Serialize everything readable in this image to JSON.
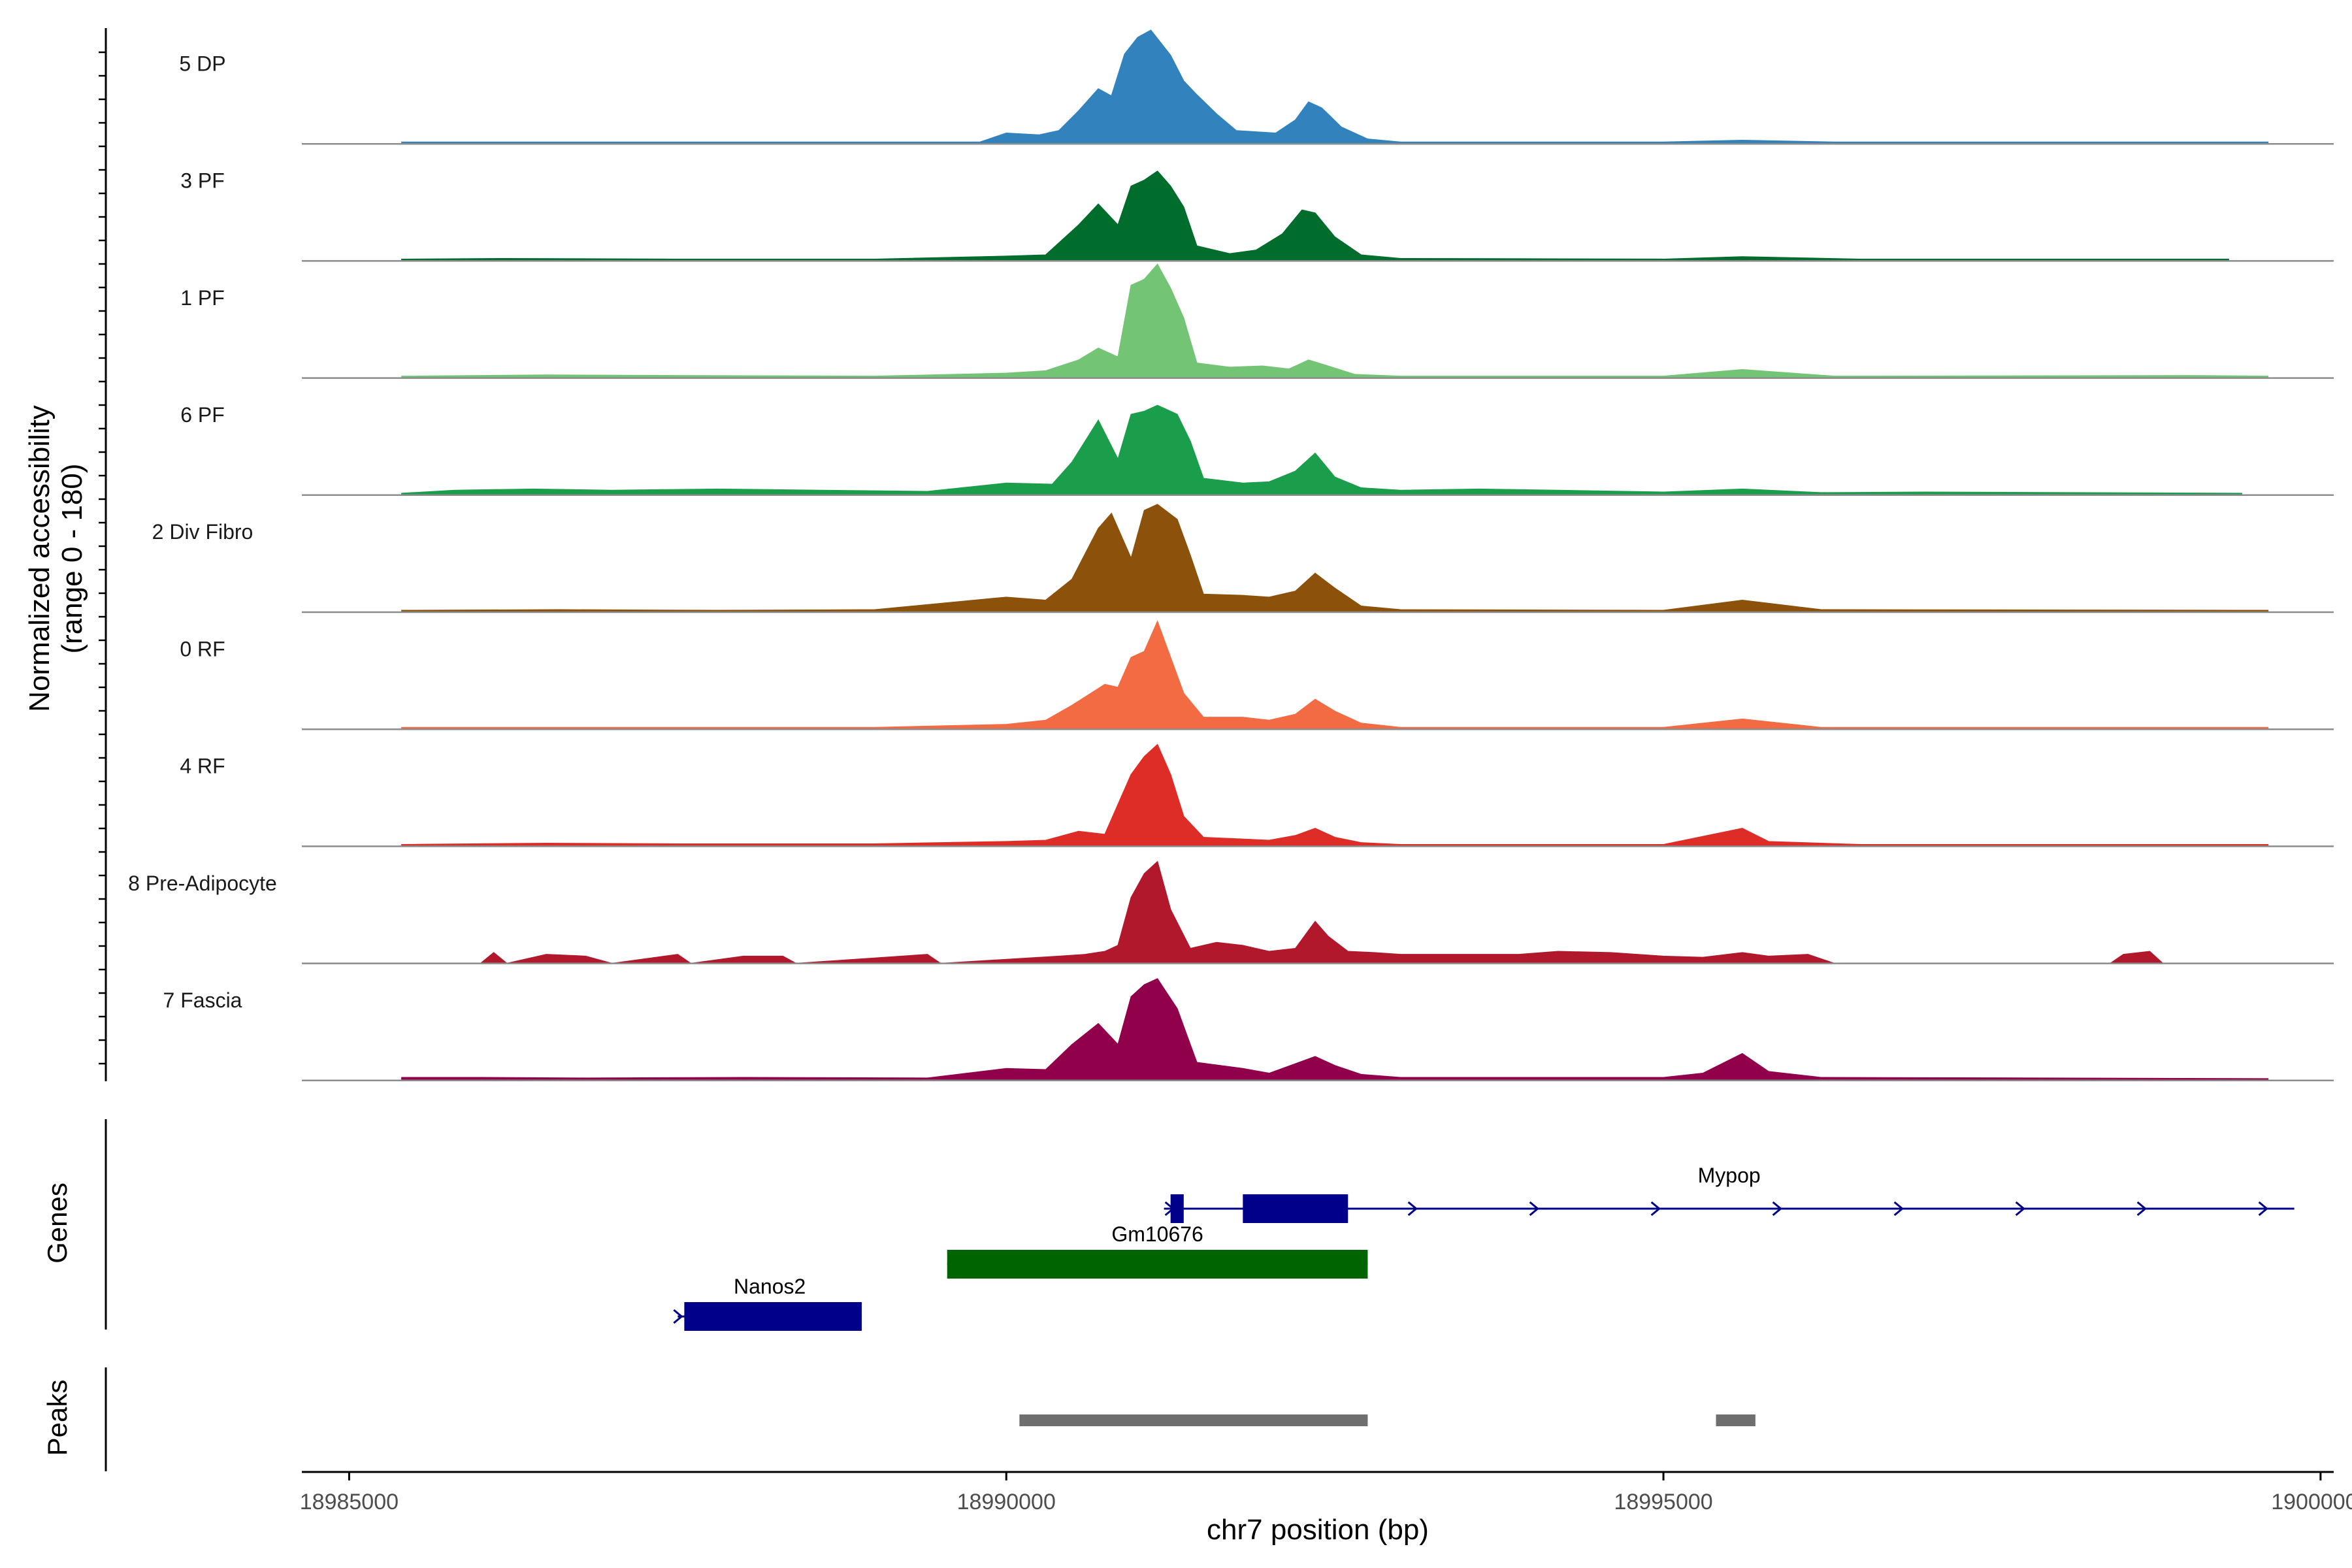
{
  "chart_data": {
    "type": "area",
    "title": "",
    "xlabel": "chr7 position (bp)",
    "ylabel": "Normalized accessibility",
    "ylabel_sub": "(range 0 - 180)",
    "ylim": [
      0,
      180
    ],
    "xlim": [
      18984640,
      19000100
    ],
    "x_ticks": [
      18985000,
      18990000,
      18995000,
      19000000
    ],
    "x_tick_labels": [
      "18985000",
      "18990000",
      "18995000",
      "19000000"
    ],
    "tracks": [
      {
        "name": "5 DP",
        "color": "#3182bd",
        "points": [
          [
            18985400,
            3
          ],
          [
            18986800,
            3
          ],
          [
            18988000,
            3
          ],
          [
            18989800,
            3
          ],
          [
            18990000,
            18
          ],
          [
            18990250,
            15
          ],
          [
            18990400,
            22
          ],
          [
            18990550,
            55
          ],
          [
            18990700,
            92
          ],
          [
            18990800,
            80
          ],
          [
            18990900,
            150
          ],
          [
            18991000,
            178
          ],
          [
            18991100,
            190
          ],
          [
            18991250,
            148
          ],
          [
            18991350,
            105
          ],
          [
            18991450,
            82
          ],
          [
            18991600,
            50
          ],
          [
            18991750,
            22
          ],
          [
            18991900,
            20
          ],
          [
            18992050,
            18
          ],
          [
            18992200,
            40
          ],
          [
            18992300,
            70
          ],
          [
            18992400,
            60
          ],
          [
            18992550,
            28
          ],
          [
            18992750,
            8
          ],
          [
            18993000,
            3
          ],
          [
            18994500,
            3
          ],
          [
            18995000,
            3
          ],
          [
            18995600,
            6
          ],
          [
            18996300,
            3
          ],
          [
            18998000,
            3
          ],
          [
            18999600,
            3
          ]
        ]
      },
      {
        "name": "3 PF",
        "color": "#006d2c",
        "points": [
          [
            18985400,
            3
          ],
          [
            18986200,
            4
          ],
          [
            18987500,
            3
          ],
          [
            18989000,
            3
          ],
          [
            18990000,
            8
          ],
          [
            18990300,
            10
          ],
          [
            18990550,
            60
          ],
          [
            18990700,
            95
          ],
          [
            18990850,
            60
          ],
          [
            18990950,
            125
          ],
          [
            18991050,
            135
          ],
          [
            18991150,
            150
          ],
          [
            18991250,
            125
          ],
          [
            18991350,
            90
          ],
          [
            18991450,
            25
          ],
          [
            18991700,
            12
          ],
          [
            18991900,
            18
          ],
          [
            18992100,
            45
          ],
          [
            18992250,
            85
          ],
          [
            18992350,
            80
          ],
          [
            18992500,
            40
          ],
          [
            18992700,
            10
          ],
          [
            18993000,
            4
          ],
          [
            18995000,
            3
          ],
          [
            18995600,
            7
          ],
          [
            18996500,
            3
          ],
          [
            18999300,
            3
          ]
        ]
      },
      {
        "name": "1 PF",
        "color": "#74c476",
        "points": [
          [
            18985400,
            3
          ],
          [
            18986500,
            5
          ],
          [
            18987500,
            4
          ],
          [
            18989000,
            3
          ],
          [
            18990000,
            8
          ],
          [
            18990300,
            12
          ],
          [
            18990550,
            30
          ],
          [
            18990700,
            50
          ],
          [
            18990850,
            35
          ],
          [
            18990950,
            155
          ],
          [
            18991050,
            165
          ],
          [
            18991150,
            190
          ],
          [
            18991250,
            150
          ],
          [
            18991350,
            100
          ],
          [
            18991450,
            25
          ],
          [
            18991700,
            18
          ],
          [
            18991950,
            20
          ],
          [
            18992150,
            15
          ],
          [
            18992300,
            30
          ],
          [
            18992450,
            20
          ],
          [
            18992650,
            6
          ],
          [
            18993000,
            3
          ],
          [
            18995000,
            3
          ],
          [
            18995600,
            14
          ],
          [
            18996300,
            3
          ],
          [
            18999000,
            4
          ],
          [
            18999600,
            3
          ]
        ]
      },
      {
        "name": "6 PF",
        "color": "#1b9e4b",
        "points": [
          [
            18985400,
            3
          ],
          [
            18985800,
            8
          ],
          [
            18986400,
            10
          ],
          [
            18987000,
            8
          ],
          [
            18987800,
            10
          ],
          [
            18988600,
            8
          ],
          [
            18989400,
            6
          ],
          [
            18990000,
            20
          ],
          [
            18990350,
            18
          ],
          [
            18990500,
            55
          ],
          [
            18990700,
            125
          ],
          [
            18990850,
            60
          ],
          [
            18990950,
            135
          ],
          [
            18991050,
            140
          ],
          [
            18991150,
            150
          ],
          [
            18991300,
            135
          ],
          [
            18991400,
            90
          ],
          [
            18991500,
            28
          ],
          [
            18991800,
            20
          ],
          [
            18992000,
            22
          ],
          [
            18992200,
            40
          ],
          [
            18992350,
            70
          ],
          [
            18992500,
            30
          ],
          [
            18992700,
            12
          ],
          [
            18993000,
            8
          ],
          [
            18993600,
            10
          ],
          [
            18994200,
            8
          ],
          [
            18995000,
            5
          ],
          [
            18995600,
            10
          ],
          [
            18996200,
            4
          ],
          [
            18997000,
            5
          ],
          [
            18999400,
            3
          ]
        ]
      },
      {
        "name": "2 Div Fibro",
        "color": "#8c510a",
        "points": [
          [
            18985400,
            3
          ],
          [
            18986600,
            4
          ],
          [
            18987800,
            3
          ],
          [
            18989000,
            4
          ],
          [
            18990000,
            25
          ],
          [
            18990300,
            20
          ],
          [
            18990500,
            55
          ],
          [
            18990700,
            140
          ],
          [
            18990800,
            165
          ],
          [
            18990950,
            90
          ],
          [
            18991050,
            170
          ],
          [
            18991150,
            180
          ],
          [
            18991300,
            155
          ],
          [
            18991400,
            95
          ],
          [
            18991500,
            30
          ],
          [
            18991800,
            28
          ],
          [
            18992000,
            25
          ],
          [
            18992200,
            35
          ],
          [
            18992350,
            65
          ],
          [
            18992500,
            40
          ],
          [
            18992700,
            10
          ],
          [
            18993000,
            4
          ],
          [
            18995000,
            3
          ],
          [
            18995600,
            20
          ],
          [
            18996200,
            4
          ],
          [
            18999600,
            3
          ]
        ]
      },
      {
        "name": "0 RF",
        "color": "#f26b43",
        "points": [
          [
            18985400,
            3
          ],
          [
            18987000,
            3
          ],
          [
            18989000,
            3
          ],
          [
            18990000,
            8
          ],
          [
            18990300,
            15
          ],
          [
            18990500,
            40
          ],
          [
            18990750,
            75
          ],
          [
            18990850,
            70
          ],
          [
            18990950,
            120
          ],
          [
            18991050,
            130
          ],
          [
            18991150,
            180
          ],
          [
            18991250,
            120
          ],
          [
            18991350,
            60
          ],
          [
            18991500,
            20
          ],
          [
            18991800,
            20
          ],
          [
            18992000,
            15
          ],
          [
            18992200,
            25
          ],
          [
            18992350,
            50
          ],
          [
            18992500,
            30
          ],
          [
            18992700,
            10
          ],
          [
            18993000,
            3
          ],
          [
            18995000,
            3
          ],
          [
            18995600,
            17
          ],
          [
            18996200,
            3
          ],
          [
            18999600,
            3
          ]
        ]
      },
      {
        "name": "4 RF",
        "color": "#de2d26",
        "points": [
          [
            18985400,
            3
          ],
          [
            18986500,
            5
          ],
          [
            18987500,
            4
          ],
          [
            18989000,
            4
          ],
          [
            18990000,
            8
          ],
          [
            18990300,
            10
          ],
          [
            18990550,
            25
          ],
          [
            18990750,
            20
          ],
          [
            18990950,
            120
          ],
          [
            18991050,
            150
          ],
          [
            18991150,
            170
          ],
          [
            18991250,
            120
          ],
          [
            18991350,
            50
          ],
          [
            18991500,
            15
          ],
          [
            18991800,
            12
          ],
          [
            18992000,
            10
          ],
          [
            18992200,
            18
          ],
          [
            18992350,
            30
          ],
          [
            18992500,
            15
          ],
          [
            18992700,
            6
          ],
          [
            18993000,
            3
          ],
          [
            18995000,
            3
          ],
          [
            18995600,
            30
          ],
          [
            18995800,
            8
          ],
          [
            18996500,
            3
          ],
          [
            18999600,
            3
          ]
        ]
      },
      {
        "name": "8 Pre-Adipocyte",
        "color": "#b2182b",
        "points": [
          [
            18986000,
            0
          ],
          [
            18986100,
            18
          ],
          [
            18986200,
            0
          ],
          [
            18986500,
            15
          ],
          [
            18986800,
            12
          ],
          [
            18987000,
            0
          ],
          [
            18987500,
            15
          ],
          [
            18987600,
            0
          ],
          [
            18988000,
            12
          ],
          [
            18988300,
            12
          ],
          [
            18988400,
            0
          ],
          [
            18989400,
            15
          ],
          [
            18989500,
            0
          ],
          [
            18990400,
            12
          ],
          [
            18990600,
            15
          ],
          [
            18990750,
            20
          ],
          [
            18990850,
            30
          ],
          [
            18990950,
            110
          ],
          [
            18991050,
            150
          ],
          [
            18991150,
            170
          ],
          [
            18991250,
            90
          ],
          [
            18991400,
            25
          ],
          [
            18991600,
            35
          ],
          [
            18991800,
            30
          ],
          [
            18992000,
            20
          ],
          [
            18992200,
            25
          ],
          [
            18992350,
            70
          ],
          [
            18992450,
            45
          ],
          [
            18992600,
            20
          ],
          [
            18992800,
            18
          ],
          [
            18993000,
            15
          ],
          [
            18993500,
            15
          ],
          [
            18993900,
            15
          ],
          [
            18994200,
            20
          ],
          [
            18994600,
            18
          ],
          [
            18995000,
            12
          ],
          [
            18995300,
            10
          ],
          [
            18995600,
            18
          ],
          [
            18995800,
            12
          ],
          [
            18996100,
            15
          ],
          [
            18996300,
            0
          ],
          [
            18998400,
            0
          ],
          [
            18998500,
            15
          ],
          [
            18998700,
            20
          ],
          [
            18998800,
            0
          ]
        ]
      },
      {
        "name": "7 Fascia",
        "color": "#91004a",
        "points": [
          [
            18985400,
            5
          ],
          [
            18986000,
            5
          ],
          [
            18986800,
            4
          ],
          [
            18988000,
            5
          ],
          [
            18989400,
            4
          ],
          [
            18990000,
            20
          ],
          [
            18990300,
            18
          ],
          [
            18990500,
            60
          ],
          [
            18990700,
            95
          ],
          [
            18990850,
            60
          ],
          [
            18990950,
            140
          ],
          [
            18991050,
            160
          ],
          [
            18991150,
            170
          ],
          [
            18991300,
            120
          ],
          [
            18991450,
            30
          ],
          [
            18991800,
            20
          ],
          [
            18992000,
            12
          ],
          [
            18992200,
            28
          ],
          [
            18992350,
            40
          ],
          [
            18992500,
            25
          ],
          [
            18992700,
            10
          ],
          [
            18993000,
            5
          ],
          [
            18995000,
            5
          ],
          [
            18995300,
            12
          ],
          [
            18995600,
            45
          ],
          [
            18995800,
            15
          ],
          [
            18996200,
            5
          ],
          [
            18999600,
            3
          ]
        ]
      }
    ],
    "genes": [
      {
        "name": "Mypop",
        "color": "#00008b",
        "strand": "+",
        "start": 18991200,
        "end": 18999800,
        "exons": [
          [
            18991250,
            18991350
          ],
          [
            18991800,
            18992600
          ]
        ]
      },
      {
        "name": "Gm10676",
        "color": "#006400",
        "strand": "+",
        "start": 18989550,
        "end": 18992750,
        "exons": [
          [
            18989550,
            18992750
          ]
        ]
      },
      {
        "name": "Nanos2",
        "color": "#00008b",
        "strand": "+",
        "start": 18987500,
        "end": 18988900,
        "exons": [
          [
            18987550,
            18988900
          ]
        ]
      }
    ],
    "peaks": [
      [
        18990100,
        18992750
      ],
      [
        18995400,
        18995700
      ]
    ],
    "panel_labels": {
      "genes": "Genes",
      "peaks": "Peaks"
    }
  }
}
